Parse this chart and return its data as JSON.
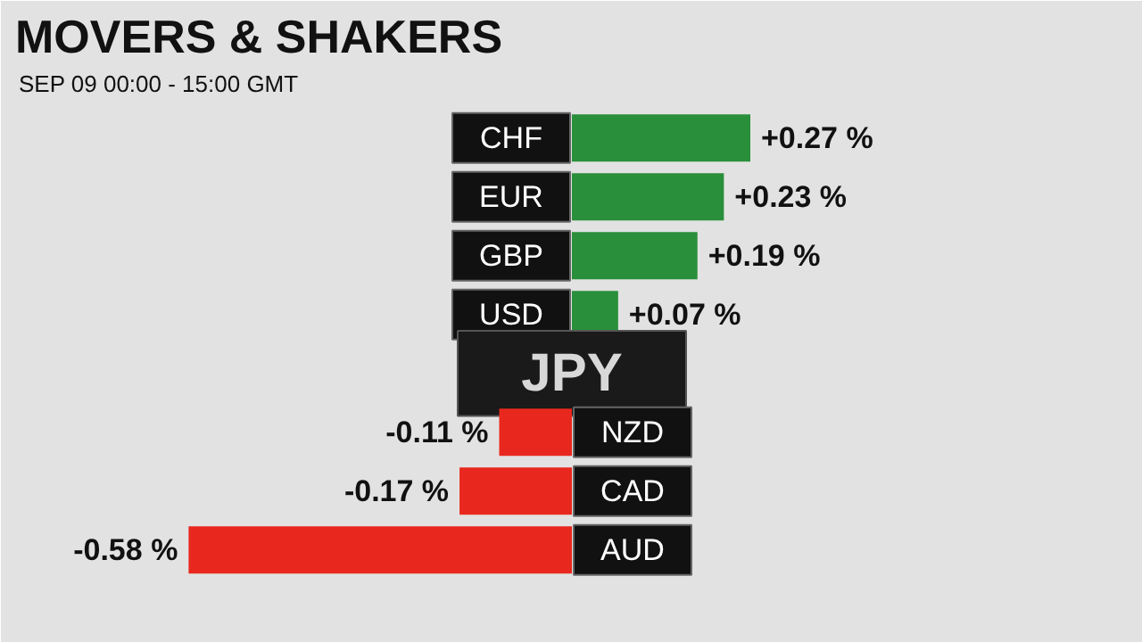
{
  "chart_data": {
    "type": "bar",
    "orientation": "horizontal",
    "title": "MOVERS & SHAKERS",
    "subtitle": "SEP 09    00:00 - 15:00 GMT",
    "categories": [
      "CHF",
      "EUR",
      "GBP",
      "USD",
      "JPY",
      "NZD",
      "CAD",
      "AUD"
    ],
    "values": [
      0.27,
      0.23,
      0.19,
      0.07,
      null,
      -0.11,
      -0.17,
      -0.58
    ],
    "colors": [
      "#2a8f3a",
      "#2a8f3a",
      "#2a8f3a",
      "#2a8f3a",
      null,
      "#e8281e",
      "#e8281e",
      "#e8281e"
    ],
    "value_labels": [
      "+0.27 %",
      "+0.23 %",
      "+0.19 %",
      "+0.07 %",
      null,
      "-0.11 %",
      "-0.17 %",
      "-0.58 %"
    ]
  }
}
